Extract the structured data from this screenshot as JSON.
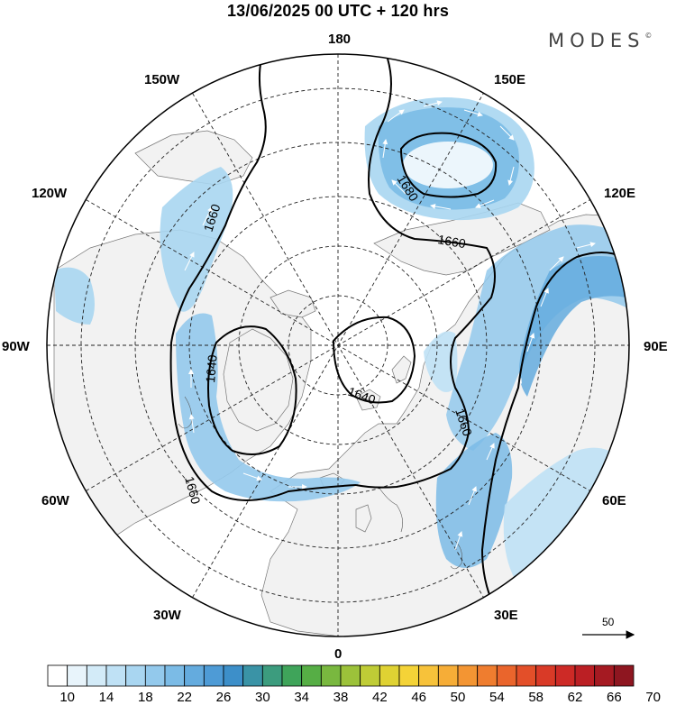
{
  "header": {
    "title": "13/06/2025  00 UTC  + 120 hrs"
  },
  "brand": {
    "name": "MODES",
    "mark": "©"
  },
  "longitude_labels": [
    {
      "id": "180",
      "text": "180"
    },
    {
      "id": "150E",
      "text": "150E"
    },
    {
      "id": "120E",
      "text": "120E"
    },
    {
      "id": "90E",
      "text": "90E"
    },
    {
      "id": "60E",
      "text": "60E"
    },
    {
      "id": "30E",
      "text": "30E"
    },
    {
      "id": "0",
      "text": "0"
    },
    {
      "id": "30W",
      "text": "30W"
    },
    {
      "id": "60W",
      "text": "60W"
    },
    {
      "id": "90W",
      "text": "90W"
    },
    {
      "id": "120W",
      "text": "120W"
    },
    {
      "id": "150W",
      "text": "150W"
    }
  ],
  "contours": [
    {
      "value": "1640",
      "label": "1640"
    },
    {
      "value": "1640",
      "label": "1640"
    },
    {
      "value": "1660",
      "label": "1660"
    },
    {
      "value": "1660",
      "label": "1660"
    },
    {
      "value": "1660",
      "label": "1660"
    },
    {
      "value": "1660",
      "label": "1660"
    },
    {
      "value": "1680",
      "label": "1680"
    }
  ],
  "wind_reference": {
    "label": "50"
  },
  "colorbar": {
    "colors": [
      "#ffffff",
      "#e8f4fb",
      "#d3ebf8",
      "#bfe1f5",
      "#a9d6f1",
      "#93c9ec",
      "#7bbbe6",
      "#64abde",
      "#4e9bd6",
      "#3d8fc9",
      "#3a93a6",
      "#3c9c7e",
      "#3fa45a",
      "#56ae45",
      "#79b83f",
      "#9cc23a",
      "#bfcc36",
      "#dfd233",
      "#f4d337",
      "#f7c23a",
      "#f6ad37",
      "#f39533",
      "#ef7d2f",
      "#ea652c",
      "#e34f29",
      "#d93a27",
      "#cd2a26",
      "#bb1f24",
      "#a51a22",
      "#8e1620"
    ],
    "labels": [
      "10",
      "14",
      "18",
      "22",
      "26",
      "30",
      "34",
      "38",
      "42",
      "46",
      "50",
      "54",
      "58",
      "62",
      "66",
      "70"
    ]
  }
}
